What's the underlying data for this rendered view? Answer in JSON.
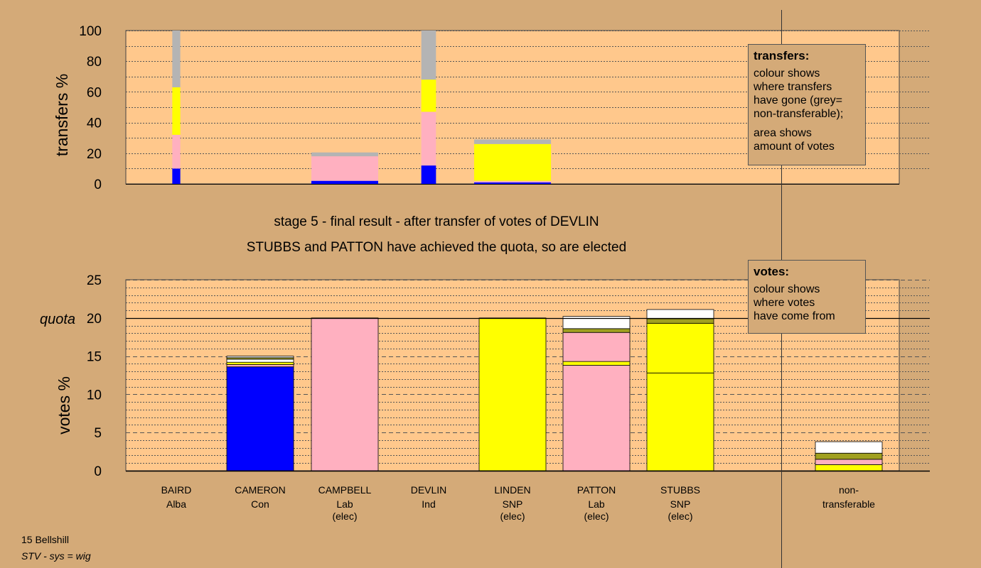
{
  "colors": {
    "background": "#d4aa78",
    "plot_bg": "#ffc88c",
    "Con": "#0000ff",
    "Lab": "#ffb0c0",
    "SNP": "#ffff00",
    "Ind": "#a0a020",
    "Alba": "#a0a020",
    "nontransferable": "#b4b4b4",
    "other": "#ffffff"
  },
  "stage_title": "stage 5 - final result - after transfer of votes of DEVLIN",
  "stage_subtitle": "STUBBS and PATTON have achieved the quota, so are elected",
  "transfers_box": {
    "title": "transfers:",
    "lines_1": [
      "colour shows",
      "where transfers",
      "have gone (grey=",
      "non-transferable);"
    ],
    "lines_2": [
      "area shows",
      "amount of votes"
    ]
  },
  "votes_box": {
    "title": "votes:",
    "lines": [
      "colour shows",
      "where votes",
      "have come from"
    ]
  },
  "footer": {
    "line1": "15 Bellshill",
    "line2": "STV - sys = wig"
  },
  "chart_data": [
    {
      "type": "bar",
      "name": "transfers",
      "ylabel": "transfers %",
      "ylim": [
        0,
        100
      ],
      "yticks": [
        0,
        20,
        40,
        60,
        80,
        100
      ],
      "grid": true,
      "bars": [
        {
          "candidate": "BAIRD",
          "width_scale": 0.12,
          "segments": [
            {
              "party": "Con",
              "value": 10
            },
            {
              "party": "Lab",
              "value": 22
            },
            {
              "party": "SNP",
              "value": 31
            },
            {
              "party": "nontransferable",
              "value": 37
            }
          ]
        },
        {
          "candidate": "CAMPBELL",
          "width_scale": 1.0,
          "segments": [
            {
              "party": "Con",
              "value": 2
            },
            {
              "party": "Lab",
              "value": 16
            },
            {
              "party": "nontransferable",
              "value": 2.5
            }
          ]
        },
        {
          "candidate": "DEVLIN",
          "width_scale": 0.22,
          "segments": [
            {
              "party": "Con",
              "value": 12
            },
            {
              "party": "Lab",
              "value": 35
            },
            {
              "party": "SNP",
              "value": 21
            },
            {
              "party": "nontransferable",
              "value": 32
            }
          ]
        },
        {
          "candidate": "LINDEN",
          "width_scale": 1.15,
          "segments": [
            {
              "party": "Con",
              "value": 1
            },
            {
              "party": "Lab",
              "value": 1
            },
            {
              "party": "SNP",
              "value": 24
            },
            {
              "party": "nontransferable",
              "value": 3
            }
          ]
        }
      ]
    },
    {
      "type": "bar",
      "name": "votes",
      "ylabel": "votes %",
      "ylim": [
        0,
        25
      ],
      "yticks": [
        0,
        5,
        10,
        15,
        20,
        25
      ],
      "quota": 20,
      "quota_label": "quota",
      "grid": true,
      "categories": [
        {
          "name": "BAIRD",
          "party": "Alba",
          "note": ""
        },
        {
          "name": "CAMERON",
          "party": "Con",
          "note": ""
        },
        {
          "name": "CAMPBELL",
          "party": "Lab",
          "note": "(elec)"
        },
        {
          "name": "DEVLIN",
          "party": "Ind",
          "note": ""
        },
        {
          "name": "LINDEN",
          "party": "SNP",
          "note": "(elec)"
        },
        {
          "name": "PATTON",
          "party": "Lab",
          "note": "(elec)"
        },
        {
          "name": "STUBBS",
          "party": "SNP",
          "note": "(elec)"
        },
        {
          "name": "non-",
          "party": "transferable",
          "note": ""
        }
      ],
      "stacks": [
        [],
        [
          {
            "color": "Con",
            "value": 13.6
          },
          {
            "color": "Lab",
            "value": 0.3
          },
          {
            "color": "SNP",
            "value": 0.3
          },
          {
            "color": "other",
            "value": 0.4
          },
          {
            "color": "Ind",
            "value": 0.2
          },
          {
            "color": "other",
            "value": 0.2
          }
        ],
        [
          {
            "color": "Lab",
            "value": 20
          }
        ],
        [],
        [
          {
            "color": "SNP",
            "value": 20
          }
        ],
        [
          {
            "color": "Lab",
            "value": 13.8
          },
          {
            "color": "SNP",
            "value": 0.5
          },
          {
            "color": "Lab",
            "value": 3.8
          },
          {
            "color": "Ind",
            "value": 0.5
          },
          {
            "color": "other",
            "value": 1.6
          }
        ],
        [
          {
            "color": "SNP",
            "value": 12.8
          },
          {
            "color": "SNP",
            "value": 6.5
          },
          {
            "color": "Ind",
            "value": 0.6
          },
          {
            "color": "other",
            "value": 1.2
          }
        ],
        [
          {
            "color": "SNP",
            "value": 0.8
          },
          {
            "color": "Lab",
            "value": 0.7
          },
          {
            "color": "Ind",
            "value": 0.8
          },
          {
            "color": "other",
            "value": 1.5
          }
        ]
      ]
    }
  ]
}
